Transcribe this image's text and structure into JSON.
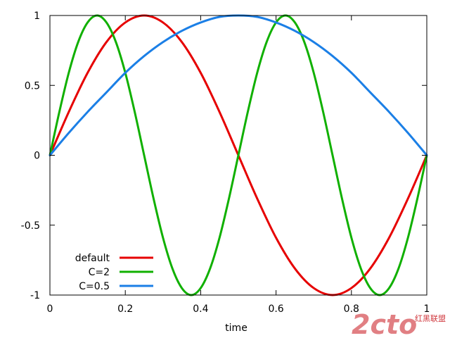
{
  "chart_data": {
    "type": "line",
    "title": "",
    "xlabel": "time",
    "ylabel": "",
    "xlim": [
      0,
      1
    ],
    "ylim": [
      -1,
      1
    ],
    "x_ticks": [
      0,
      0.2,
      0.4,
      0.6,
      0.8,
      1
    ],
    "x_tick_labels": [
      "0",
      "0.2",
      "0.4",
      "0.6",
      "0.8",
      "1"
    ],
    "y_ticks": [
      -1,
      -0.5,
      0,
      0.5,
      1
    ],
    "y_tick_labels": [
      "-1",
      "-0.5",
      "0",
      "0.5",
      "1"
    ],
    "grid": false,
    "legend_position": "bottom-left",
    "series": [
      {
        "name": "default",
        "color": "#e60000",
        "x": [
          0,
          0.05,
          0.1,
          0.15,
          0.2,
          0.25,
          0.3,
          0.35,
          0.4,
          0.45,
          0.5,
          0.55,
          0.6,
          0.65,
          0.7,
          0.75,
          0.8,
          0.85,
          0.9,
          0.95,
          1
        ],
        "y": [
          0,
          0.31,
          0.59,
          0.81,
          0.95,
          1,
          0.95,
          0.81,
          0.59,
          0.31,
          0,
          -0.31,
          -0.59,
          -0.81,
          -0.95,
          -1,
          -0.95,
          -0.81,
          -0.59,
          -0.31,
          0
        ]
      },
      {
        "name": "C=2",
        "color": "#10b000",
        "x": [
          0,
          0.025,
          0.05,
          0.075,
          0.1,
          0.125,
          0.15,
          0.175,
          0.2,
          0.225,
          0.25,
          0.275,
          0.3,
          0.325,
          0.35,
          0.375,
          0.4,
          0.425,
          0.45,
          0.475,
          0.5,
          0.525,
          0.55,
          0.575,
          0.6,
          0.625,
          0.65,
          0.675,
          0.7,
          0.725,
          0.75,
          0.775,
          0.8,
          0.825,
          0.85,
          0.875,
          0.9,
          0.925,
          0.95,
          0.975,
          1
        ],
        "y": [
          0,
          0.31,
          0.59,
          0.81,
          0.95,
          1,
          0.95,
          0.81,
          0.59,
          0.31,
          0,
          -0.31,
          -0.59,
          -0.81,
          -0.95,
          -1,
          -0.95,
          -0.81,
          -0.59,
          -0.31,
          0,
          0.31,
          0.59,
          0.81,
          0.95,
          1,
          0.95,
          0.81,
          0.59,
          0.31,
          0,
          -0.31,
          -0.59,
          -0.81,
          -0.95,
          -1,
          -0.95,
          -0.81,
          -0.59,
          -0.31,
          0
        ]
      },
      {
        "name": "C=0.5",
        "color": "#1b7fe6",
        "x": [
          0,
          0.05,
          0.1,
          0.15,
          0.2,
          0.25,
          0.3,
          0.35,
          0.4,
          0.45,
          0.5,
          0.55,
          0.6,
          0.65,
          0.7,
          0.75,
          0.8,
          0.85,
          0.9,
          0.95,
          1
        ],
        "y": [
          0,
          0.16,
          0.31,
          0.45,
          0.59,
          0.71,
          0.81,
          0.89,
          0.95,
          0.99,
          1,
          0.99,
          0.95,
          0.89,
          0.81,
          0.71,
          0.59,
          0.45,
          0.31,
          0.16,
          0
        ]
      }
    ]
  },
  "watermark": {
    "big_text": "2cto",
    "small_text": "红黑联盟",
    "color": "#c8161d"
  }
}
